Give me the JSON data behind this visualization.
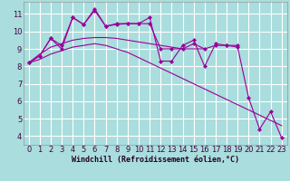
{
  "xlabel": "Windchill (Refroidissement éolien,°C)",
  "background_color": "#aadddd",
  "grid_color": "#ffffff",
  "line_color": "#990099",
  "xlim": [
    -0.5,
    23.5
  ],
  "ylim": [
    3.5,
    11.7
  ],
  "yticks": [
    4,
    5,
    6,
    7,
    8,
    9,
    10,
    11
  ],
  "xticks": [
    0,
    1,
    2,
    3,
    4,
    5,
    6,
    7,
    8,
    9,
    10,
    11,
    12,
    13,
    14,
    15,
    16,
    17,
    18,
    19,
    20,
    21,
    22,
    23
  ],
  "series1_x": [
    0,
    1,
    2,
    3,
    4,
    5,
    6,
    7,
    8,
    9,
    10,
    11,
    12,
    13,
    14,
    15,
    16,
    17,
    18,
    19,
    20,
    21,
    22,
    23
  ],
  "series1_y": [
    8.2,
    8.6,
    9.6,
    9.0,
    10.8,
    10.4,
    11.3,
    10.3,
    10.4,
    10.45,
    10.45,
    10.8,
    8.3,
    8.3,
    9.2,
    9.5,
    8.0,
    9.3,
    9.2,
    9.1,
    6.2,
    4.4,
    5.4,
    3.9
  ],
  "series2_x": [
    0,
    1,
    2,
    3,
    4,
    5,
    6,
    7,
    8,
    9,
    10,
    11,
    12,
    13,
    14,
    15,
    16,
    17,
    18,
    19
  ],
  "series2_y": [
    8.2,
    8.6,
    9.6,
    9.2,
    10.8,
    10.4,
    11.2,
    10.3,
    10.45,
    10.45,
    10.45,
    10.45,
    9.0,
    9.0,
    9.0,
    9.3,
    9.0,
    9.2,
    9.2,
    9.2
  ],
  "series3_x": [
    0,
    1,
    2,
    3,
    4,
    5,
    6,
    7,
    8,
    9,
    10,
    11,
    12,
    13,
    14,
    15,
    16
  ],
  "series3_y": [
    8.2,
    8.7,
    9.1,
    9.3,
    9.5,
    9.6,
    9.65,
    9.65,
    9.6,
    9.5,
    9.4,
    9.3,
    9.2,
    9.1,
    9.0,
    9.0,
    9.0
  ],
  "series4_x": [
    0,
    1,
    2,
    3,
    4,
    5,
    6,
    7,
    8,
    9,
    10,
    11,
    12,
    13,
    14,
    15,
    16,
    17,
    18,
    19,
    20,
    21,
    22,
    23
  ],
  "series4_y": [
    8.2,
    8.4,
    8.7,
    8.9,
    9.1,
    9.2,
    9.3,
    9.2,
    9.0,
    8.8,
    8.5,
    8.2,
    7.9,
    7.6,
    7.3,
    7.0,
    6.7,
    6.4,
    6.1,
    5.8,
    5.5,
    5.2,
    4.9,
    4.6
  ],
  "xlabel_fontsize": 6.0,
  "tick_fontsize": 6.0
}
